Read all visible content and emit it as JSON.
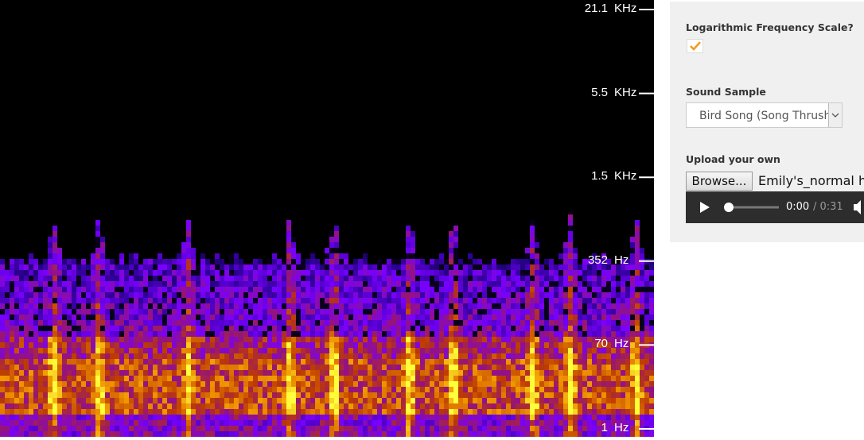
{
  "axis": {
    "labels": [
      {
        "number": "21.1",
        "unit": "KHz"
      },
      {
        "number": "5.5",
        "unit": "KHz"
      },
      {
        "number": "1.5",
        "unit": "KHz"
      },
      {
        "number": "352",
        "unit": "Hz"
      },
      {
        "number": "70",
        "unit": "Hz"
      },
      {
        "number": "1",
        "unit": "Hz"
      }
    ]
  },
  "panel": {
    "log_scale_label": "Logarithmic Frequency Scale?",
    "sample_label": "Sound Sample",
    "sample_selected": "Bird Song (Song Thrush)",
    "upload_label": "Upload your own",
    "browse_button": "Browse...",
    "file_name": "Emily's_normal he",
    "player": {
      "current": "0:00",
      "duration": "/ 0:31"
    }
  }
}
